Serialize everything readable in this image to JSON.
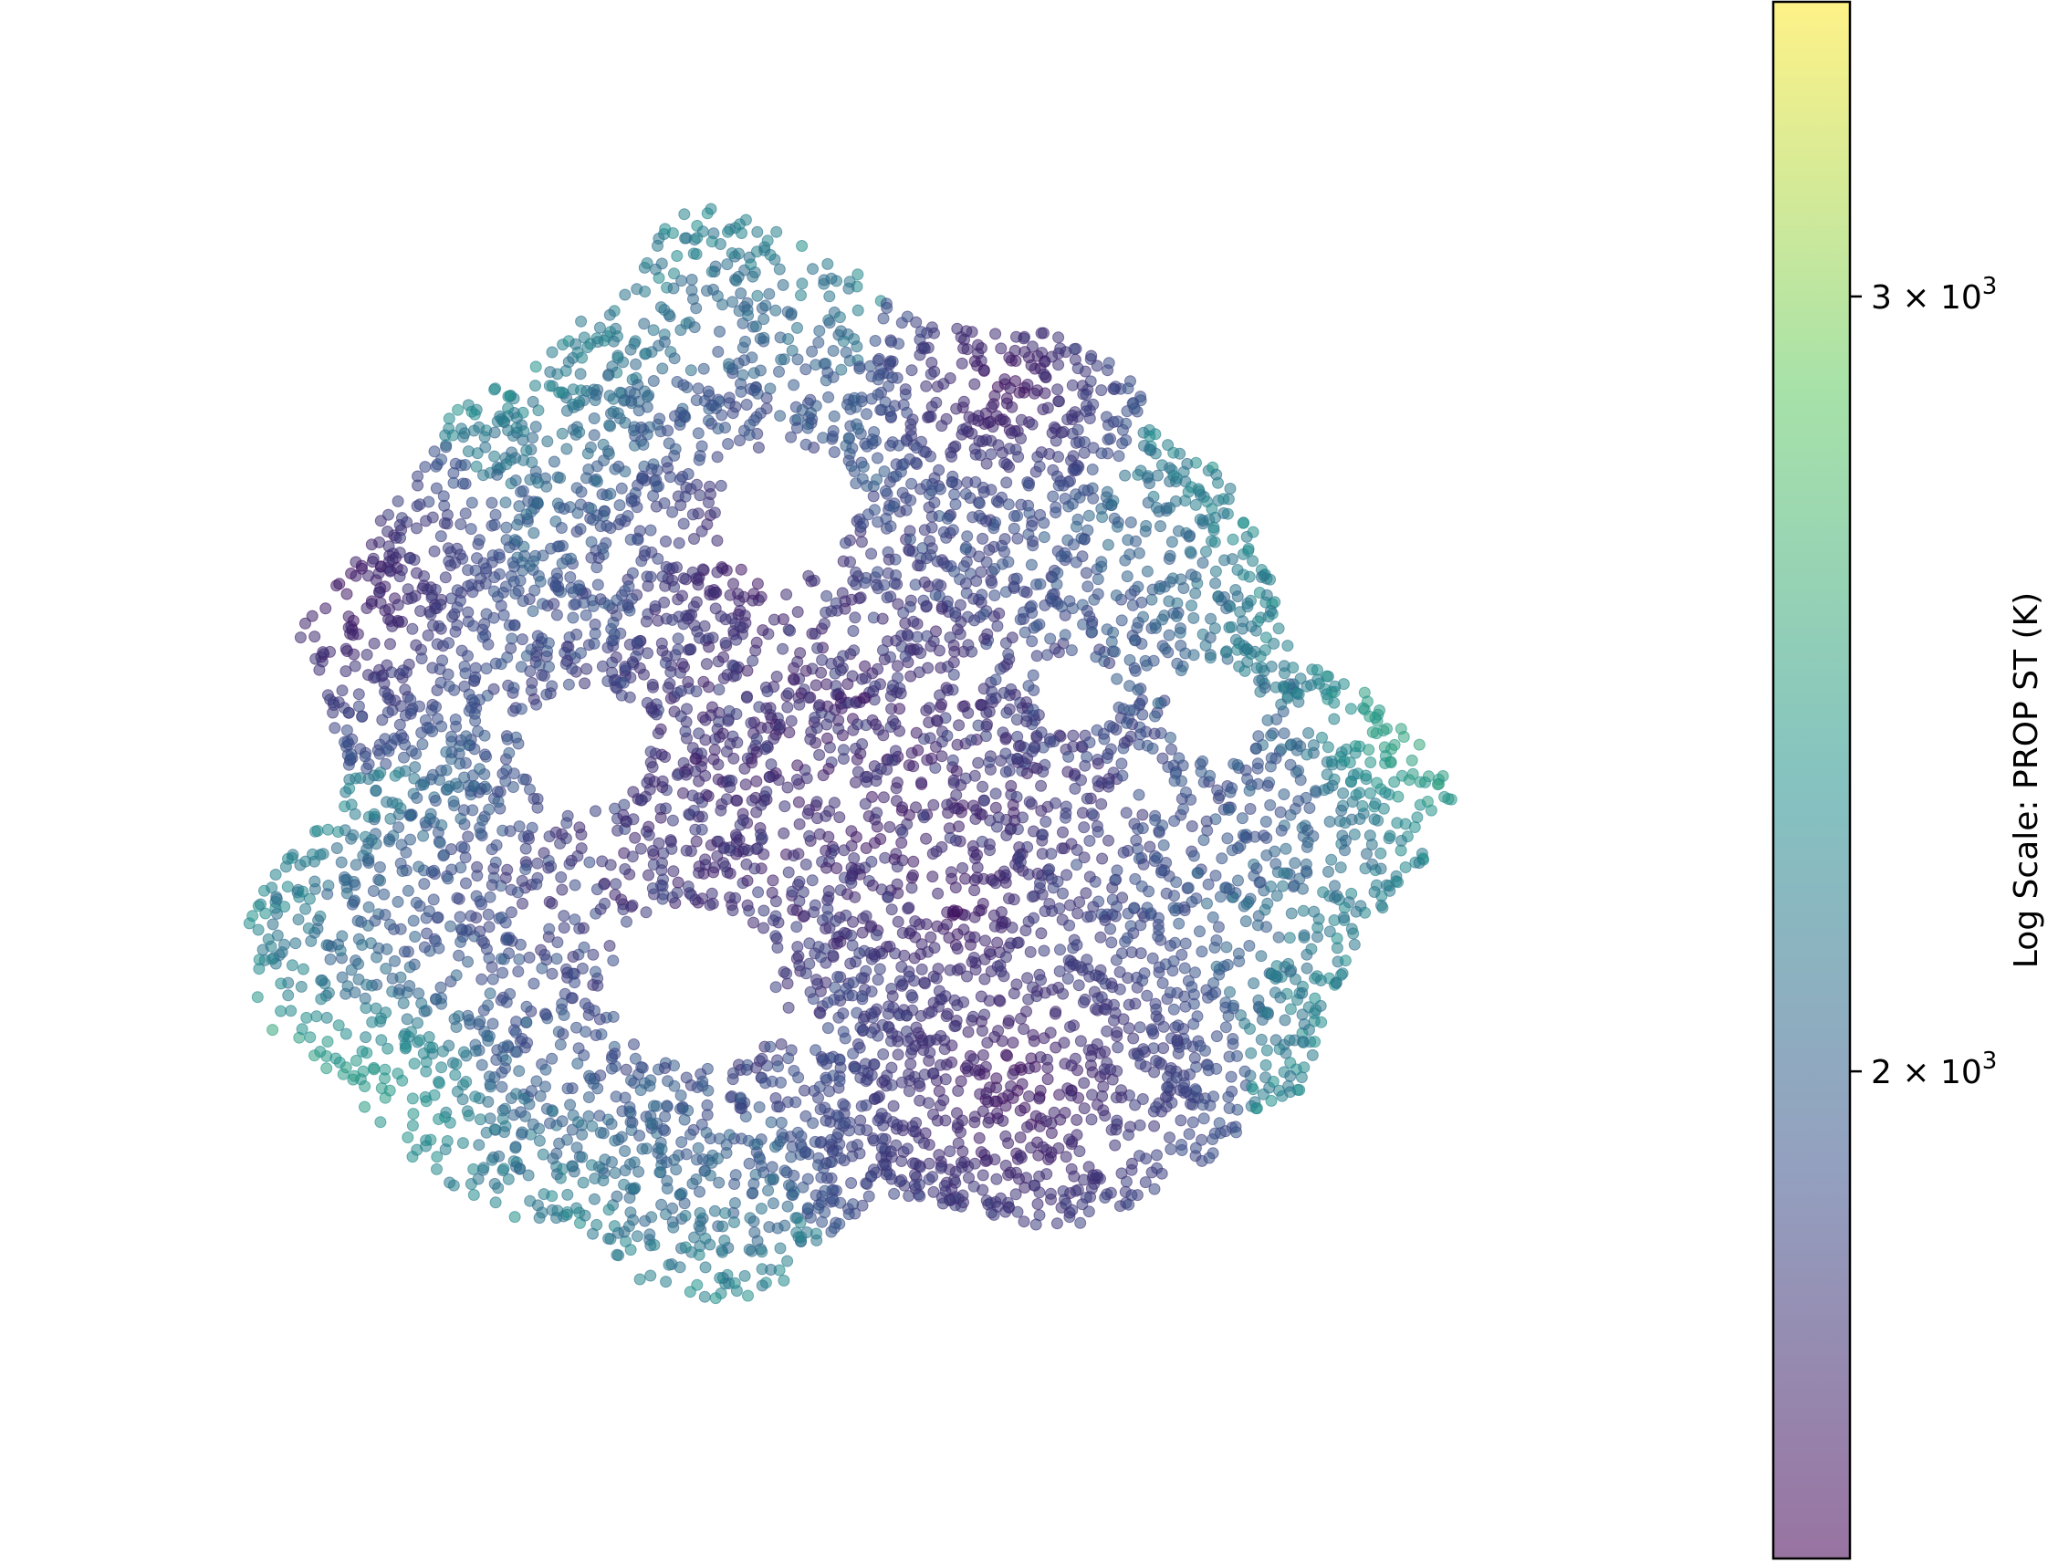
{
  "chart_data": {
    "type": "scatter",
    "title": "",
    "xlabel": "",
    "ylabel": "",
    "axes_visible": false,
    "grid": false,
    "legend": "none",
    "colormap": "viridis",
    "marker_alpha": 0.55,
    "layout_note_points": "points form a roughly circular embedding with radial fan-like sub-clusters",
    "colorbar": {
      "label": "Log Scale: PROP ST (K)",
      "scale": "log",
      "range": [
        1550,
        3500
      ],
      "ticks": [
        {
          "value": 3000,
          "mantissa": "3",
          "label": "3 × 10",
          "exponent": "3"
        },
        {
          "value": 2000,
          "mantissa": "2",
          "label": "2 × 10",
          "exponent": "3"
        }
      ],
      "colors": [
        "#440154",
        "#3b528b",
        "#21918c",
        "#5ec962",
        "#fde725"
      ]
    },
    "highlight_regions": [
      {
        "name": "upper-left-fan",
        "value_level": "low"
      },
      {
        "name": "right-fan",
        "value_level": "high"
      },
      {
        "name": "lower-left-arc",
        "value_level": "highest"
      }
    ]
  }
}
